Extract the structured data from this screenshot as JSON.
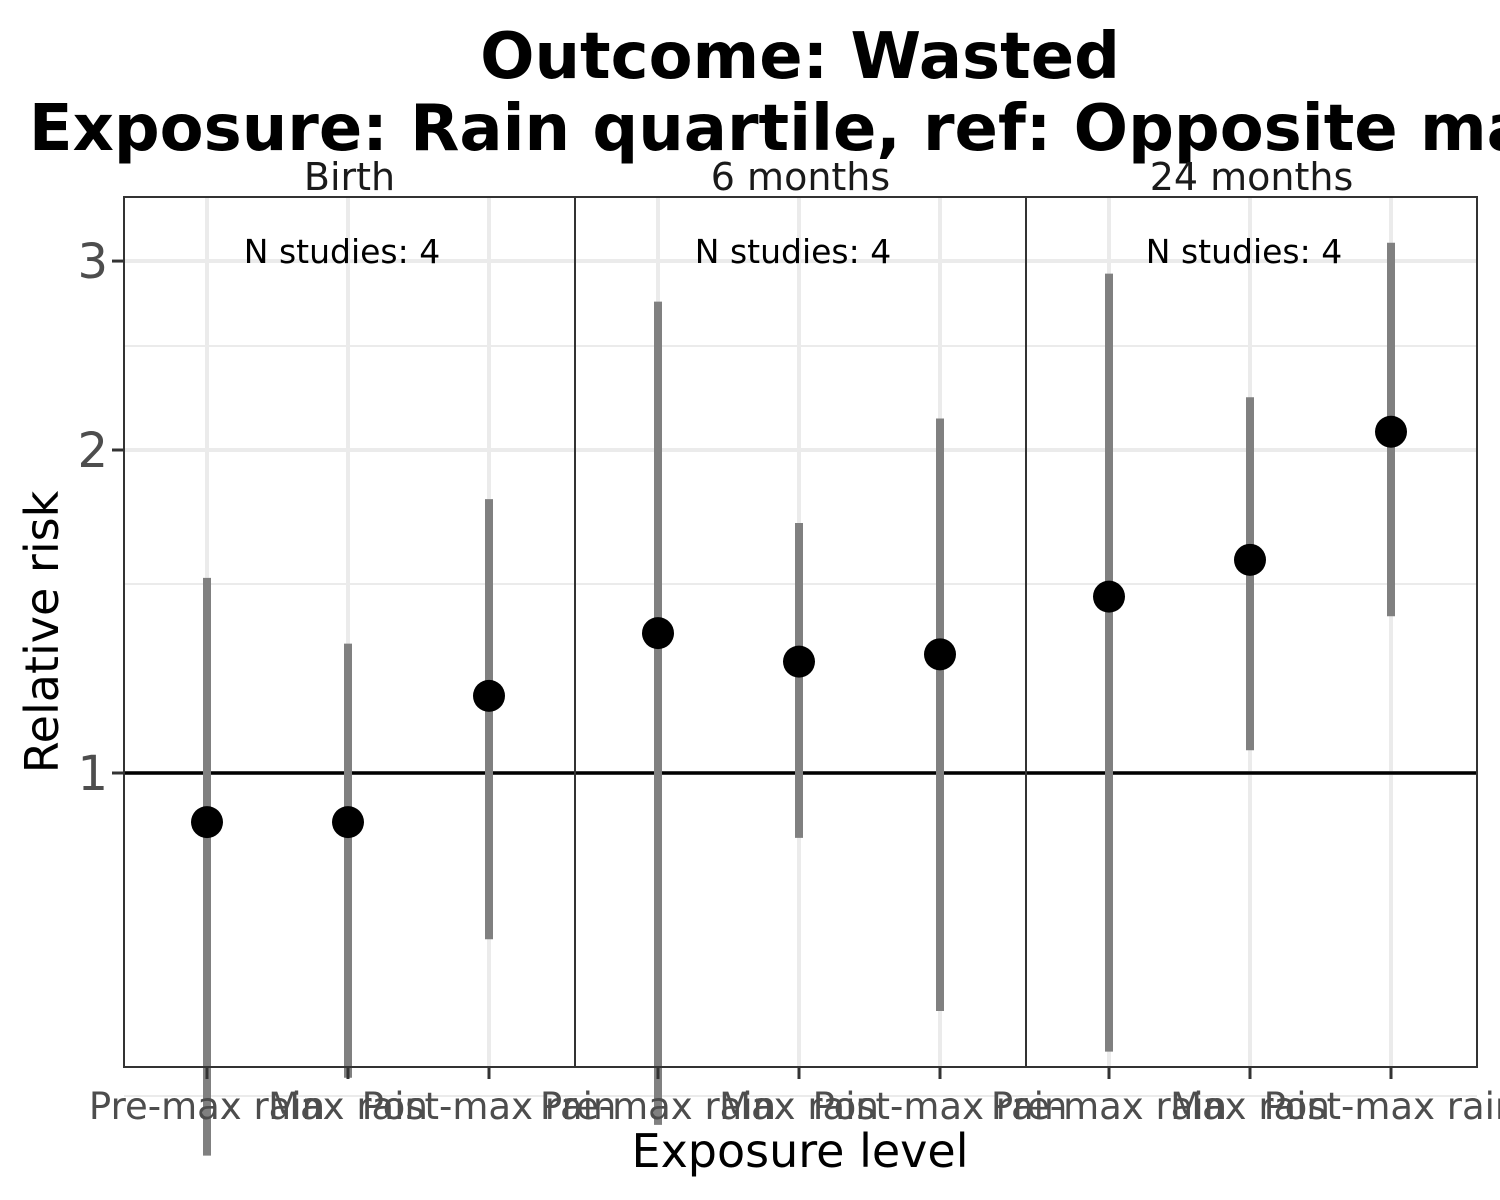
{
  "chart_data": {
    "type": "scatter",
    "title": "Outcome: Wasted",
    "subtitle": "Exposure: Rain quartile, ref: Opposite max",
    "xlabel": "Exposure level",
    "ylabel": "Relative risk",
    "y_scale": "log",
    "ylim": [
      0.4,
      3.3
    ],
    "yticks": [
      {
        "value": 1,
        "label": "1"
      },
      {
        "value": 2,
        "label": "2"
      },
      {
        "value": 3,
        "label": "3"
      }
    ],
    "y_minor_gridlines": [
      0.5,
      1.5,
      2.5
    ],
    "reference_line": 1,
    "grid": true,
    "categories": [
      "Pre-max rain",
      "Max rain",
      "Post-max rain"
    ],
    "panels": [
      {
        "name": "Birth",
        "annotation": "N studies: 4",
        "points": [
          {
            "x": "Pre-max rain",
            "estimate": 0.9,
            "lower": 0.44,
            "upper": 1.52
          },
          {
            "x": "Max rain",
            "estimate": 0.9,
            "lower": 0.52,
            "upper": 1.32
          },
          {
            "x": "Post-max rain",
            "estimate": 1.18,
            "lower": 0.7,
            "upper": 1.8
          }
        ]
      },
      {
        "name": "6 months",
        "annotation": "N studies: 4",
        "points": [
          {
            "x": "Pre-max rain",
            "estimate": 1.35,
            "lower": 0.47,
            "upper": 2.75
          },
          {
            "x": "Max rain",
            "estimate": 1.27,
            "lower": 0.87,
            "upper": 1.71
          },
          {
            "x": "Post-max rain",
            "estimate": 1.29,
            "lower": 0.6,
            "upper": 2.14
          }
        ]
      },
      {
        "name": "24 months",
        "annotation": "N studies: 4",
        "points": [
          {
            "x": "Pre-max rain",
            "estimate": 1.46,
            "lower": 0.55,
            "upper": 2.92
          },
          {
            "x": "Max rain",
            "estimate": 1.58,
            "lower": 1.05,
            "upper": 2.24
          },
          {
            "x": "Post-max rain",
            "estimate": 2.08,
            "lower": 1.4,
            "upper": 3.12
          }
        ]
      }
    ],
    "colors": {
      "point": "#000000",
      "errorbar": "#808080",
      "reference_line": "#000000",
      "grid": "#ebebeb",
      "panel_border": "#333333"
    }
  }
}
